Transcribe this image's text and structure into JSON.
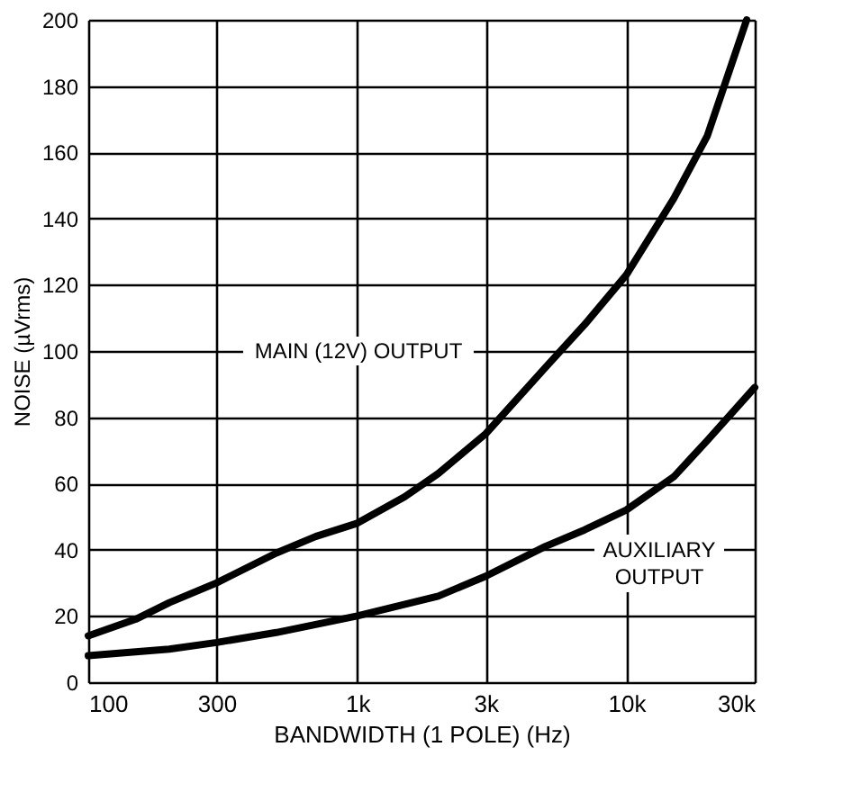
{
  "chart_data": {
    "type": "line",
    "xlabel": "BANDWIDTH (1 POLE) (Hz)",
    "ylabel": "NOISE (µVrms)",
    "log": "x",
    "xlim": [
      100,
      30000
    ],
    "xticks": [
      {
        "value": 100,
        "label": "100"
      },
      {
        "value": 300,
        "label": "300"
      },
      {
        "value": 1000,
        "label": "1k"
      },
      {
        "value": 3000,
        "label": "3k"
      },
      {
        "value": 10000,
        "label": "10k"
      },
      {
        "value": 30000,
        "label": "30k"
      }
    ],
    "ylim": [
      0,
      200
    ],
    "yticks": [
      0,
      20,
      40,
      60,
      80,
      100,
      120,
      140,
      160,
      180,
      200
    ],
    "grid": true,
    "legend": false,
    "line_style": "solid",
    "marker": "none",
    "series": [
      {
        "color": "#000000",
        "x": [
          100,
          150,
          200,
          300,
          500,
          700,
          1000,
          1500,
          2000,
          3000,
          5000,
          7000,
          10000,
          15000,
          20000,
          28000
        ],
        "values": [
          14,
          19,
          24,
          30,
          39,
          44,
          48,
          56,
          63,
          75,
          95,
          108,
          123,
          146,
          165,
          200
        ]
      },
      {
        "color": "#000000",
        "x": [
          100,
          200,
          300,
          500,
          1000,
          2000,
          3000,
          5000,
          7000,
          10000,
          15000,
          20000,
          30000
        ],
        "values": [
          8,
          10,
          12,
          15,
          20,
          26,
          32,
          41,
          46,
          52,
          62,
          73,
          89
        ]
      }
    ],
    "annotations": [
      "MAIN (12V) OUTPUT",
      "AUXILIARY\nOUTPUT"
    ]
  }
}
